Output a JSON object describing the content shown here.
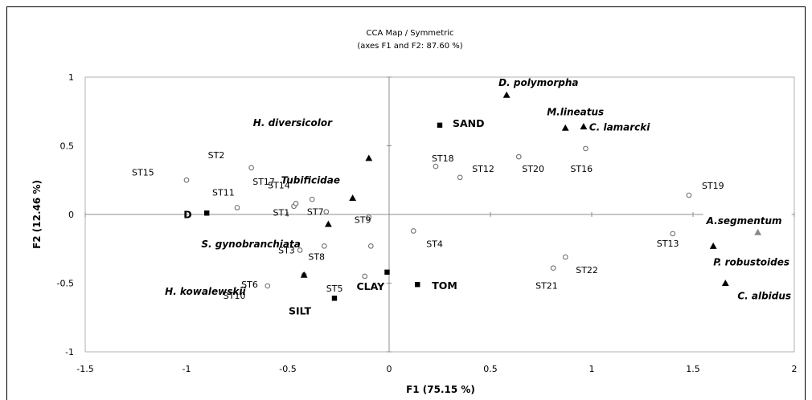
{
  "chart_data": {
    "type": "scatter",
    "title": "CCA Map / Symmetric",
    "subtitle": "(axes F1 and F2: 87.60 %)",
    "xlabel": "F1 (75.15 %)",
    "ylabel": "F2 (12.46 %)",
    "xlim": [
      -1.5,
      2
    ],
    "ylim": [
      -1,
      1
    ],
    "xticks": [
      "-1.5",
      "-1",
      "-0.5",
      "0",
      "0.5",
      "1",
      "1.5",
      "2"
    ],
    "yticks": [
      "1",
      "0.5",
      "0",
      "-0.5",
      "-1"
    ],
    "series": [
      {
        "kind": "stations",
        "marker": "open-circle",
        "style": "normal",
        "points": [
          {
            "label": "ST1",
            "x": -0.47,
            "y": 0.06
          },
          {
            "label": "ST2",
            "x": -0.68,
            "y": 0.34
          },
          {
            "label": "ST3",
            "x": -0.44,
            "y": -0.26
          },
          {
            "label": "ST4",
            "x": 0.12,
            "y": -0.12
          },
          {
            "label": "ST5",
            "x": -0.12,
            "y": -0.45
          },
          {
            "label": "ST6",
            "x": -0.42,
            "y": -0.44
          },
          {
            "label": "ST7",
            "x": -0.31,
            "y": 0.02
          },
          {
            "label": "ST8",
            "x": -0.32,
            "y": -0.23
          },
          {
            "label": "ST9",
            "x": -0.1,
            "y": -0.02
          },
          {
            "label": "ST10",
            "x": -0.6,
            "y": -0.52
          },
          {
            "label": "ST11",
            "x": -0.75,
            "y": 0.05
          },
          {
            "label": "ST12",
            "x": 0.35,
            "y": 0.27
          },
          {
            "label": "ST13",
            "x": 1.4,
            "y": -0.14
          },
          {
            "label": "ST14",
            "x": -0.46,
            "y": 0.08
          },
          {
            "label": "ST15",
            "x": -1.0,
            "y": 0.25
          },
          {
            "label": "ST16",
            "x": 0.97,
            "y": 0.48
          },
          {
            "label": "ST17",
            "x": -0.38,
            "y": 0.11
          },
          {
            "label": "ST18",
            "x": 0.23,
            "y": 0.35
          },
          {
            "label": "ST19",
            "x": 1.48,
            "y": 0.14
          },
          {
            "label": "ST20",
            "x": 0.64,
            "y": 0.42
          },
          {
            "label": "ST21",
            "x": 0.81,
            "y": -0.39
          },
          {
            "label": "ST22",
            "x": 0.87,
            "y": -0.31
          },
          {
            "label": "",
            "x": -0.09,
            "y": -0.23
          }
        ]
      },
      {
        "kind": "variables",
        "marker": "filled-square",
        "style": "bold",
        "points": [
          {
            "label": "SAND",
            "x": 0.25,
            "y": 0.65
          },
          {
            "label": "D",
            "x": -0.9,
            "y": 0.01
          },
          {
            "label": "SILT",
            "x": -0.27,
            "y": -0.61
          },
          {
            "label": "CLAY",
            "x": -0.01,
            "y": -0.42
          },
          {
            "label": "TOM",
            "x": 0.14,
            "y": -0.51
          }
        ]
      },
      {
        "kind": "species",
        "marker": "filled-triangle",
        "style": "italic",
        "points": [
          {
            "label": "D. polymorpha",
            "x": 0.58,
            "y": 0.87
          },
          {
            "label": "M.lineatus",
            "x": 0.87,
            "y": 0.63
          },
          {
            "label": "C. lamarcki",
            "x": 0.96,
            "y": 0.64
          },
          {
            "label": "H. diversicolor",
            "x": -0.1,
            "y": 0.41
          },
          {
            "label": "Tubificidae",
            "x": -0.18,
            "y": 0.12
          },
          {
            "label": "S. gynobranchiata",
            "x": -0.3,
            "y": -0.07
          },
          {
            "label": "H. kowalewskii",
            "x": -0.42,
            "y": -0.44
          },
          {
            "label": "A.segmentum",
            "x": 1.82,
            "y": -0.13,
            "color": "#888888"
          },
          {
            "label": "P. robustoides",
            "x": 1.6,
            "y": -0.23
          },
          {
            "label": "C. albidus",
            "x": 1.66,
            "y": -0.5
          }
        ]
      }
    ]
  }
}
